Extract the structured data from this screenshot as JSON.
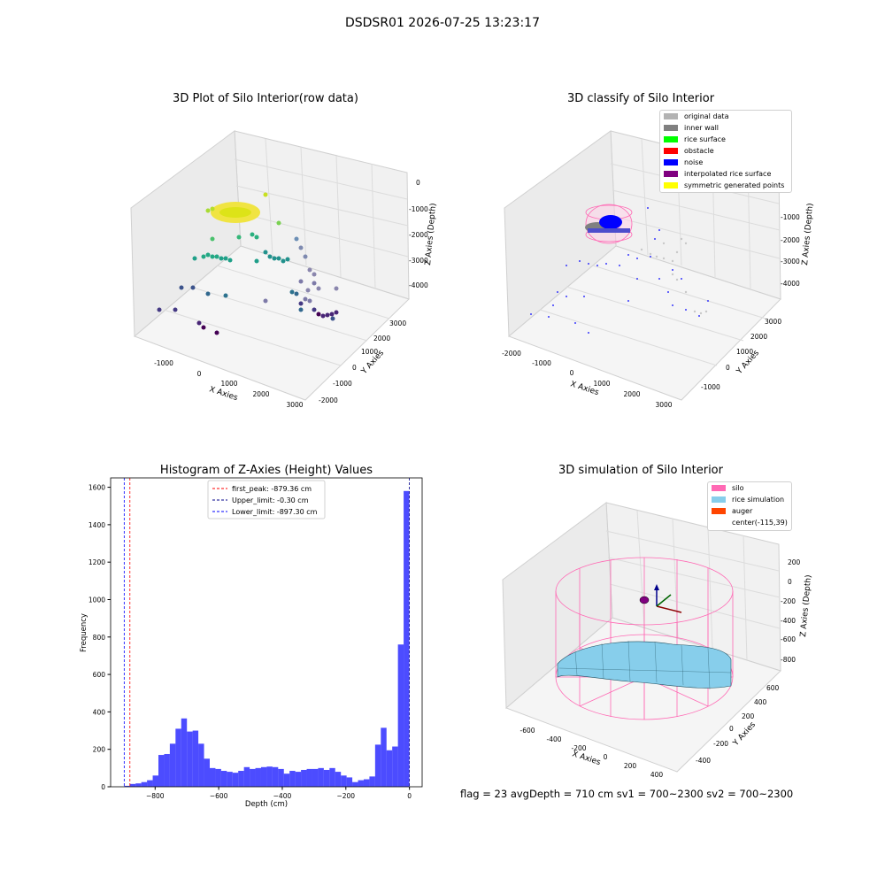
{
  "suptitle": "DSDSR01 2026-07-25 13:23:17",
  "footer": "flag = 23   avgDepth = 710 cm   sv1 = 700~2300   sv2 = 700~2300",
  "panels": {
    "raw": {
      "title": "3D Plot of Silo Interior(row data)",
      "xlabel": "X Axies",
      "ylabel": "Y Axies",
      "zlabel": "Z Axies (Depth)",
      "xticks": [
        "-1000",
        "0",
        "1000",
        "2000",
        "3000"
      ],
      "yticks": [
        "-2000",
        "-1000",
        "0",
        "1000",
        "2000",
        "3000"
      ],
      "zticks": [
        "0",
        "-1000",
        "-2000",
        "-3000",
        "-4000"
      ]
    },
    "classify": {
      "title": "3D classify of Silo Interior",
      "xlabel": "X Axies",
      "ylabel": "Y Axies",
      "zlabel": "Z Axies (Depth)",
      "xticks": [
        "-2000",
        "-1000",
        "0",
        "1000",
        "2000",
        "3000"
      ],
      "yticks": [
        "-1000",
        "0",
        "1000",
        "2000",
        "3000"
      ],
      "zticks": [
        "0",
        "-1000",
        "-2000",
        "-3000",
        "-4000"
      ],
      "legend": [
        {
          "label": "original data",
          "color": "#b3b3b3"
        },
        {
          "label": "inner wall",
          "color": "#808080"
        },
        {
          "label": "rice surface",
          "color": "#00ff00"
        },
        {
          "label": "obstacle",
          "color": "#ff0000"
        },
        {
          "label": "noise",
          "color": "#0000ff"
        },
        {
          "label": "interpolated rice surface",
          "color": "#800080"
        },
        {
          "label": "symmetric generated points",
          "color": "#ffff00"
        }
      ]
    },
    "simulation": {
      "title": "3D simulation of Silo Interior",
      "xlabel": "X Axies",
      "ylabel": "Y Axies",
      "zlabel": "Z Axies (Depth)",
      "xticks": [
        "-600",
        "-400",
        "-200",
        "0",
        "200",
        "400"
      ],
      "yticks": [
        "-400",
        "-200",
        "0",
        "200",
        "400",
        "600"
      ],
      "zticks": [
        "200",
        "0",
        "-200",
        "-400",
        "-600",
        "-800"
      ],
      "legend": [
        {
          "label": "silo",
          "color": "#ff69b4"
        },
        {
          "label": "rice simulation",
          "color": "#87ceeb"
        },
        {
          "label": "auger",
          "color": "#ff4500"
        },
        {
          "label": "center(-115,39)",
          "color": ""
        }
      ]
    }
  },
  "chart_data": [
    {
      "type": "bar",
      "title": "Histogram of Z-Axies (Height) Values",
      "xlabel": "Depth (cm)",
      "ylabel": "Frequency",
      "xlim": [
        -940,
        40
      ],
      "ylim": [
        0,
        1650
      ],
      "xticks": [
        -800,
        -600,
        -400,
        -200,
        0
      ],
      "yticks": [
        0,
        200,
        400,
        600,
        800,
        1000,
        1200,
        1400,
        1600
      ],
      "bin_start": -897.3,
      "bin_width": 17.94,
      "values": [
        5,
        15,
        18,
        25,
        35,
        60,
        170,
        175,
        230,
        310,
        365,
        295,
        300,
        230,
        150,
        100,
        95,
        85,
        80,
        75,
        85,
        105,
        95,
        100,
        105,
        108,
        105,
        95,
        70,
        85,
        80,
        90,
        95,
        95,
        100,
        90,
        100,
        80,
        60,
        50,
        25,
        35,
        40,
        55,
        225,
        315,
        195,
        215,
        760,
        1580
      ],
      "color": "#0000ff",
      "lines": [
        {
          "label": "first_peak: -879.36 cm",
          "x": -879.36,
          "color": "#ff0000"
        },
        {
          "label": "Upper_limit: -0.30 cm",
          "x": -0.3,
          "color": "#00008b"
        },
        {
          "label": "Lower_limit: -897.30 cm",
          "x": -897.3,
          "color": "#0000ff"
        }
      ]
    }
  ]
}
